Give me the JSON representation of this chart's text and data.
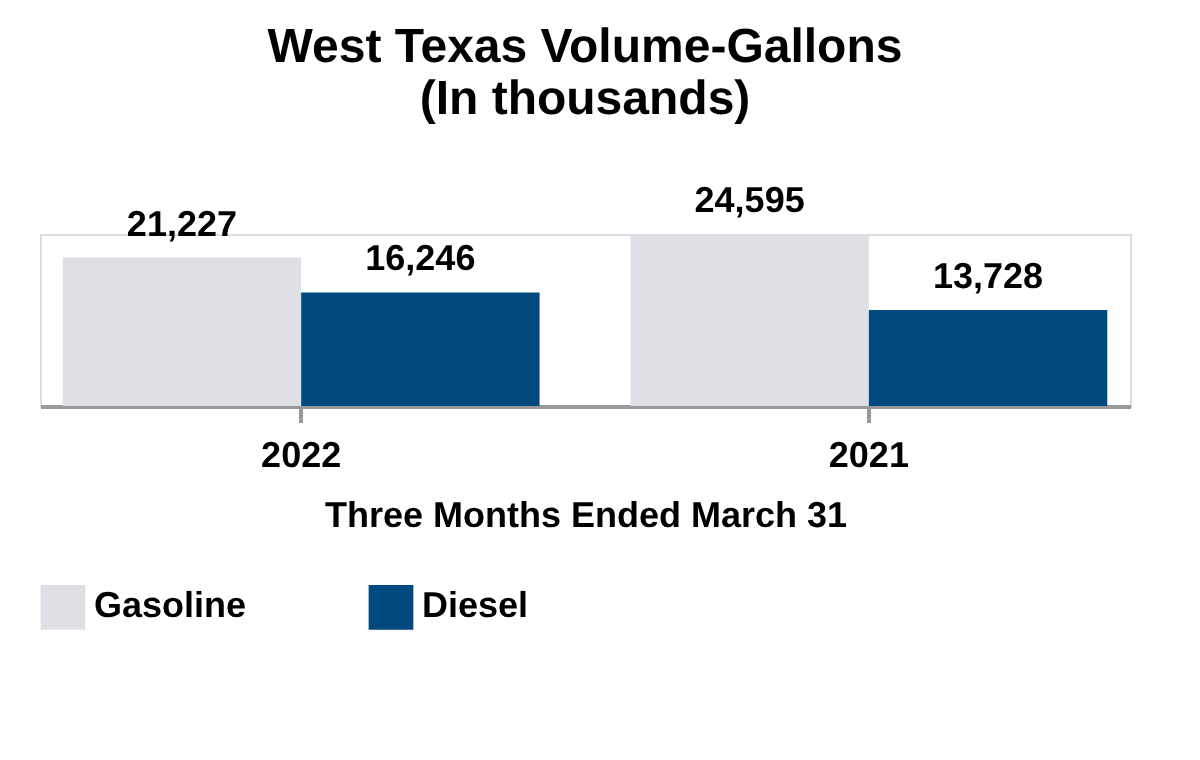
{
  "chart_data": {
    "type": "bar",
    "title": "West Texas Volume-Gallons\n(In thousands)",
    "xlabel": "Three Months Ended March 31",
    "categories": [
      "2022",
      "2021"
    ],
    "series": [
      {
        "name": "Gasoline",
        "color": "#dfe0e6",
        "values": [
          21227,
          24595
        ],
        "value_labels": [
          "21,227",
          "24,595"
        ]
      },
      {
        "name": "Diesel",
        "color": "#004a80",
        "values": [
          16246,
          13728
        ],
        "value_labels": [
          "16,246",
          "13,728"
        ]
      }
    ],
    "grid": false,
    "legend": "bottom"
  }
}
